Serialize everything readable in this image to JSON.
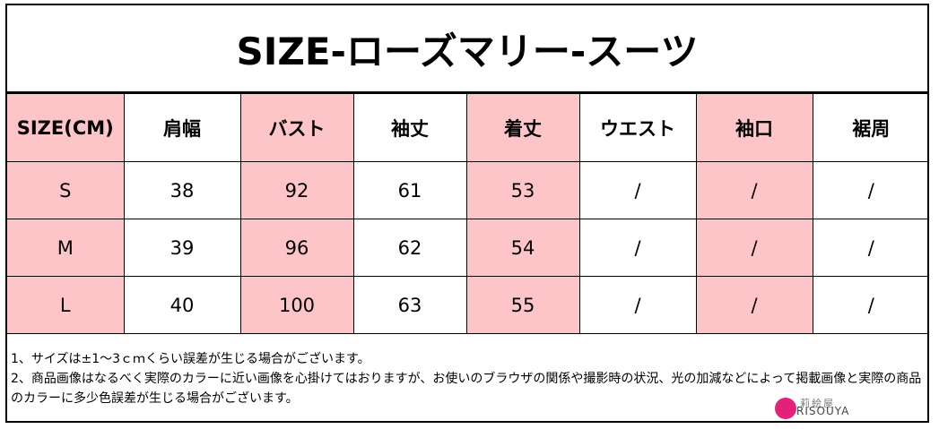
{
  "title": "SIZE-ローズマリー-スーツ",
  "headers": [
    "SIZE(CM)",
    "肩幅",
    "バスト",
    "袖丈",
    "着丈",
    "ウエスト",
    "袖口",
    "裾周"
  ],
  "rows": [
    [
      "S",
      "38",
      "92",
      "61",
      "53",
      "/",
      "/",
      "/"
    ],
    [
      "M",
      "39",
      "96",
      "62",
      "54",
      "/",
      "/",
      "/"
    ],
    [
      "L",
      "40",
      "100",
      "63",
      "55",
      "/",
      "/",
      "/"
    ]
  ],
  "notes": [
    "1、サイズは±1～3ｃｍくらい誤差が生じる場合がございます。",
    "2、商品画像はなるべく実際のカラーに近い画像を心掛けてはおりますが、お使いのブラウザの関係や撮影時の状況、光の加減などによって掲載画像と実際の商品",
    "のカラーに多少色誤差が生じる場合がございます。"
  ],
  "logo": {
    "jp": "莉絵屋",
    "en": "RISOUYA"
  },
  "colors": {
    "pink_column": "#fec5c9",
    "border": "#000000"
  }
}
